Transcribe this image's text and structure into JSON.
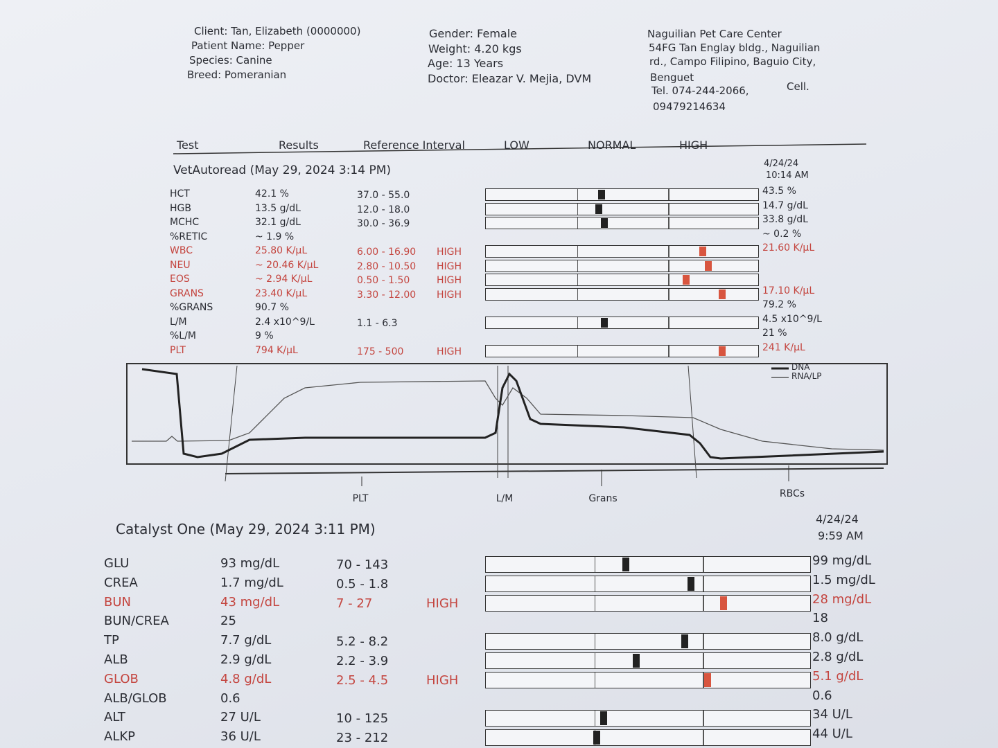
{
  "header": {
    "patient": [
      "Client: Tan, Elizabeth (0000000)",
      "Patient Name: Pepper",
      "Species: Canine",
      "Breed: Pomeranian"
    ],
    "details": [
      "Gender: Female",
      "Weight: 4.20 kgs",
      "Age: 13 Years",
      "Doctor: Eleazar V. Mejia, DVM"
    ],
    "clinic": [
      "Naguilian Pet Care Center",
      "54FG Tan Englay bldg., Naguilian",
      "rd., Campo Filipino, Baguio City,",
      "Benguet",
      "Tel. 074-244-2066,",
      "Cell.",
      "09479214634"
    ]
  },
  "columns": [
    "Test",
    "Results",
    "Reference Interval",
    "LOW",
    "NORMAL",
    "HIGH"
  ],
  "sections": [
    {
      "title": "VetAutoread (May 29, 2024 3:14 PM)",
      "prev_date": "4/24/24",
      "prev_time": "10:14 AM",
      "rows": [
        {
          "test": "HCT",
          "result": "42.1 %",
          "ref": "37.0 - 55.0",
          "prev": "43.5 %"
        },
        {
          "test": "HGB",
          "result": "13.5 g/dL",
          "ref": "12.0 - 18.0",
          "prev": "14.7 g/dL"
        },
        {
          "test": "MCHC",
          "result": "32.1 g/dL",
          "ref": "30.0 - 36.9",
          "prev": "33.8 g/dL"
        },
        {
          "test": "%RETIC",
          "result": "~ 1.9 %",
          "prev": "~ 0.2 %"
        },
        {
          "test": "WBC",
          "result": "25.80 K/µL",
          "ref": "6.00 - 16.90",
          "flag": "HIGH",
          "prev": "21.60 K/µL"
        },
        {
          "test": "NEU",
          "result": "~ 20.46 K/µL",
          "ref": "2.80 - 10.50",
          "flag": "HIGH"
        },
        {
          "test": "EOS",
          "result": "~ 2.94 K/µL",
          "ref": "0.50 - 1.50",
          "flag": "HIGH"
        },
        {
          "test": "GRANS",
          "result": "23.40 K/µL",
          "ref": "3.30 - 12.00",
          "flag": "HIGH",
          "prev": "17.10 K/µL"
        },
        {
          "test": "%GRANS",
          "result": "90.7 %",
          "prev": "79.2 %"
        },
        {
          "test": "L/M",
          "result": "2.4 x10^9/L",
          "ref": "1.1 - 6.3",
          "prev": "4.5 x10^9/L"
        },
        {
          "test": "%L/M",
          "result": "9 %",
          "prev": "21 %"
        },
        {
          "test": "PLT",
          "result": "794 K/µL",
          "ref": "175 - 500",
          "flag": "HIGH",
          "prev": "241 K/µL"
        }
      ]
    },
    {
      "title": "Catalyst One (May 29, 2024 3:11 PM)",
      "prev_date": "4/24/24",
      "prev_time": "9:59 AM",
      "rows": [
        {
          "test": "GLU",
          "result": "93 mg/dL",
          "ref": "70 - 143",
          "prev": "99 mg/dL"
        },
        {
          "test": "CREA",
          "result": "1.7 mg/dL",
          "ref": "0.5 - 1.8",
          "prev": "1.5 mg/dL"
        },
        {
          "test": "BUN",
          "result": "43 mg/dL",
          "ref": "7 - 27",
          "flag": "HIGH",
          "prev": "28 mg/dL"
        },
        {
          "test": "BUN/CREA",
          "result": "25",
          "prev": "18"
        },
        {
          "test": "TP",
          "result": "7.7 g/dL",
          "ref": "5.2 - 8.2",
          "prev": "8.0 g/dL"
        },
        {
          "test": "ALB",
          "result": "2.9 g/dL",
          "ref": "2.2 - 3.9",
          "prev": "2.8 g/dL"
        },
        {
          "test": "GLOB",
          "result": "4.8 g/dL",
          "ref": "2.5 - 4.5",
          "flag": "HIGH",
          "prev": "5.1 g/dL"
        },
        {
          "test": "ALB/GLOB",
          "result": "0.6",
          "prev": "0.6"
        },
        {
          "test": "ALT",
          "result": "27 U/L",
          "ref": "10 - 125",
          "prev": "34 U/L"
        },
        {
          "test": "ALKP",
          "result": "36 U/L",
          "ref": "23 - 212",
          "prev": "44 U/L"
        }
      ]
    }
  ],
  "graph": {
    "labels": [
      "PLT",
      "L/M",
      "Grans",
      "RBCs"
    ],
    "legend": [
      "DNA",
      "RNA/LP"
    ]
  }
}
